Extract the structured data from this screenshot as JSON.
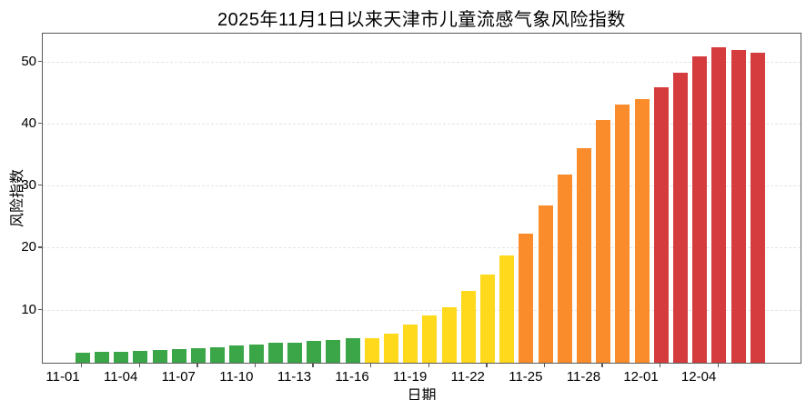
{
  "title": "2025年11月1日以来天津市儿童流感气象风险指数",
  "chart_data": {
    "type": "bar",
    "title": "2025年11月1日以来天津市儿童流感气象风险指数",
    "xlabel": "日期",
    "ylabel": "风险指数",
    "ylim": [
      1.2,
      54.6
    ],
    "yticks": [
      "10",
      "20",
      "30",
      "40",
      "50"
    ],
    "xtick_labels": [
      "11-01",
      "11-04",
      "11-07",
      "11-10",
      "11-13",
      "11-16",
      "11-19",
      "11-22",
      "11-25",
      "11-28",
      "12-01",
      "12-04"
    ],
    "grid": "horizontal-dashed",
    "legend": "none",
    "categories": [
      "11-01",
      "11-02",
      "11-03",
      "11-04",
      "11-05",
      "11-06",
      "11-07",
      "11-08",
      "11-09",
      "11-10",
      "11-11",
      "11-12",
      "11-13",
      "11-14",
      "11-15",
      "11-16",
      "11-17",
      "11-18",
      "11-19",
      "11-20",
      "11-21",
      "11-22",
      "11-23",
      "11-24",
      "11-25",
      "11-26",
      "11-27",
      "11-28",
      "11-29",
      "11-30",
      "12-01",
      "12-02",
      "12-03",
      "12-04",
      "12-05",
      "12-06"
    ],
    "values": [
      2.8,
      2.9,
      3.0,
      3.1,
      3.3,
      3.4,
      3.6,
      3.7,
      4.0,
      4.2,
      4.4,
      4.5,
      4.7,
      4.9,
      5.1,
      5.2,
      5.9,
      7.4,
      8.8,
      10.2,
      12.8,
      15.5,
      18.5,
      22.1,
      26.6,
      31.5,
      35.8,
      40.4,
      42.9,
      43.7,
      45.6,
      48.0,
      50.6,
      52.1,
      51.7,
      51.2
    ],
    "bar_levels": [
      "green",
      "green",
      "green",
      "green",
      "green",
      "green",
      "green",
      "green",
      "green",
      "green",
      "green",
      "green",
      "green",
      "green",
      "green",
      "yellow",
      "yellow",
      "yellow",
      "yellow",
      "yellow",
      "yellow",
      "yellow",
      "yellow",
      "orange",
      "orange",
      "orange",
      "orange",
      "orange",
      "orange",
      "orange",
      "red",
      "red",
      "red",
      "red",
      "red",
      "red"
    ],
    "level_colors": {
      "green": "#3BA648",
      "yellow": "#FFD91C",
      "orange": "#FA8C2B",
      "red": "#D43C3E"
    }
  }
}
